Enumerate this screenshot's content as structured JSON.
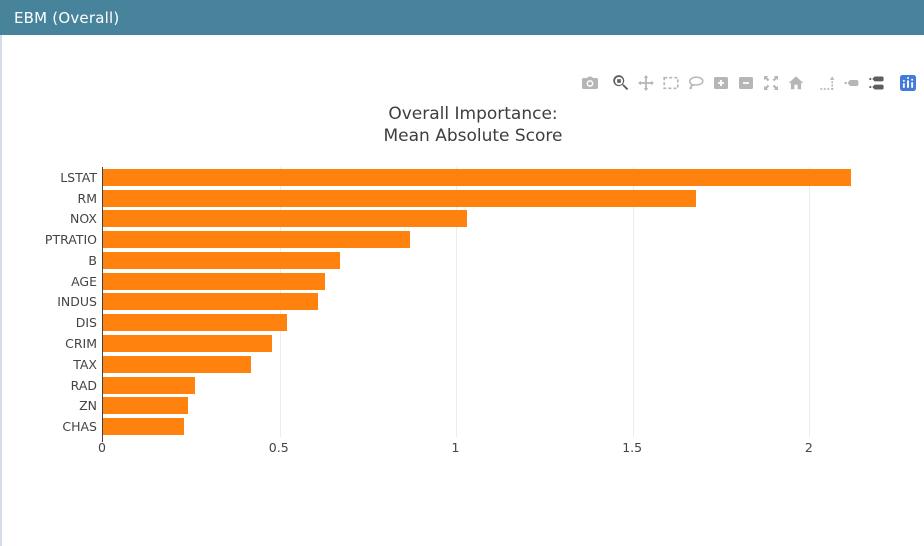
{
  "window": {
    "title": "EBM (Overall)"
  },
  "modebar": {
    "icons": [
      {
        "name": "camera-icon",
        "active": false
      },
      {
        "name": "zoom-icon",
        "active": true
      },
      {
        "name": "pan-icon",
        "active": false
      },
      {
        "name": "box-select-icon",
        "active": false
      },
      {
        "name": "lasso-select-icon",
        "active": false
      },
      {
        "name": "zoom-in-icon",
        "active": false
      },
      {
        "name": "zoom-out-icon",
        "active": false
      },
      {
        "name": "autoscale-icon",
        "active": false
      },
      {
        "name": "reset-axes-icon",
        "active": false
      },
      {
        "name": "toggle-spikelines-icon",
        "active": false
      },
      {
        "name": "hover-closest-icon",
        "active": false
      },
      {
        "name": "hover-compare-icon",
        "active": true
      },
      {
        "name": "plotly-logo-icon",
        "active": false
      }
    ]
  },
  "chart_data": {
    "type": "bar",
    "orientation": "horizontal",
    "title": "Overall Importance:\nMean Absolute Score",
    "title_lines": [
      "Overall Importance:",
      "Mean Absolute Score"
    ],
    "categories": [
      "LSTAT",
      "RM",
      "NOX",
      "PTRATIO",
      "B",
      "AGE",
      "INDUS",
      "DIS",
      "CRIM",
      "TAX",
      "RAD",
      "ZN",
      "CHAS"
    ],
    "values": [
      2.12,
      1.68,
      1.03,
      0.87,
      0.67,
      0.63,
      0.61,
      0.52,
      0.48,
      0.42,
      0.26,
      0.24,
      0.23
    ],
    "xlabel": "",
    "ylabel": "",
    "xlim": [
      0,
      2.32
    ],
    "xticks": [
      0,
      0.5,
      1,
      1.5,
      2
    ],
    "xtick_labels": [
      "0",
      "0.5",
      "1",
      "1.5",
      "2"
    ],
    "grid": true,
    "legend": "none",
    "bar_color": "#FF810E"
  },
  "colors": {
    "header_bg": "#47849B",
    "header_text": "#FFFFFF",
    "bar_orange": "#FF810E",
    "plotly_logo_blue": "#447ADB",
    "grid_line": "#ECECEC",
    "axis_line": "#444444",
    "tick_text": "#444444",
    "title_text": "#3E3E3E",
    "icon_inactive": "#B6B6B6",
    "icon_active": "#5E5E5E",
    "panel_left_border": "#D6DCE7"
  }
}
